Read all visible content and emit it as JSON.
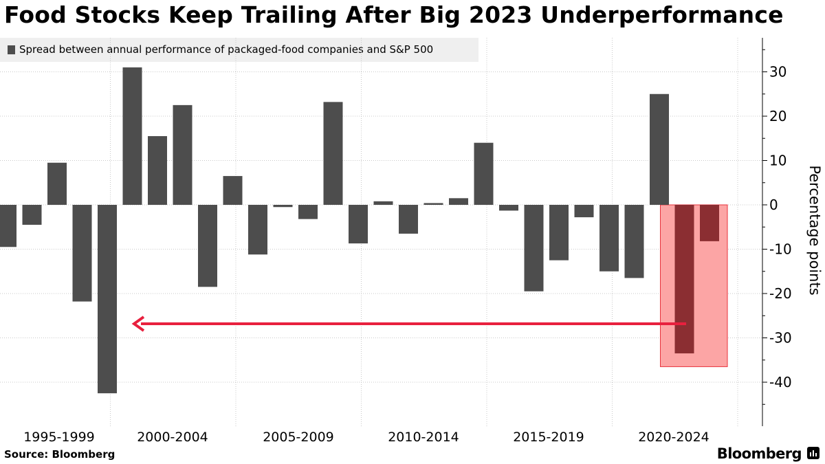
{
  "title": "Food Stocks Keep Trailing After Big 2023 Underperformance",
  "legend": {
    "label": "Spread between annual performance of packaged-food companies and S&P 500"
  },
  "source": "Source: Bloomberg",
  "brand": "Bloomberg",
  "brand_icon": "bloomberg-terminal-icon",
  "colors": {
    "bar": "#4d4d4d",
    "highlight_bar": "#8b2e32",
    "highlight_fill": "#fca5a5",
    "highlight_border": "#e8323c",
    "arrow": "#e8203e",
    "grid": "#c8c8c8"
  },
  "chart_data": {
    "type": "bar",
    "title": "Food Stocks Keep Trailing After Big 2023 Underperformance",
    "ylabel": "Percentage points",
    "ylim": [
      -50,
      38
    ],
    "yticks": [
      30,
      20,
      10,
      0,
      -10,
      -20,
      -30,
      -40
    ],
    "x_tick_labels": [
      "1995-1999",
      "2000-2004",
      "2005-2009",
      "2010-2014",
      "2015-2019",
      "2020-2024"
    ],
    "grid": true,
    "legend_position": "top-left",
    "series": [
      {
        "name": "Spread between annual performance of packaged-food companies and S&P 500",
        "categories": [
          "1995",
          "1996",
          "1997",
          "1998",
          "1999",
          "2000",
          "2001",
          "2002",
          "2003",
          "2004",
          "2005",
          "2006",
          "2007",
          "2008",
          "2009",
          "2010",
          "2011",
          "2012",
          "2013",
          "2014",
          "2015",
          "2016",
          "2017",
          "2018",
          "2019",
          "2020",
          "2021",
          "2022",
          "2023",
          "2024"
        ],
        "values": [
          -9.5,
          -4.5,
          9.5,
          -21.8,
          -42.5,
          31.0,
          15.5,
          22.5,
          -18.5,
          6.5,
          -11.2,
          -0.5,
          -3.2,
          23.2,
          -8.7,
          0.8,
          -6.5,
          0.4,
          1.5,
          14.0,
          -1.3,
          -19.5,
          -12.5,
          -2.8,
          -15.0,
          -16.5,
          25.0,
          -33.5,
          -8.2,
          null
        ],
        "highlighted": [
          "2022",
          "2023"
        ]
      }
    ]
  }
}
